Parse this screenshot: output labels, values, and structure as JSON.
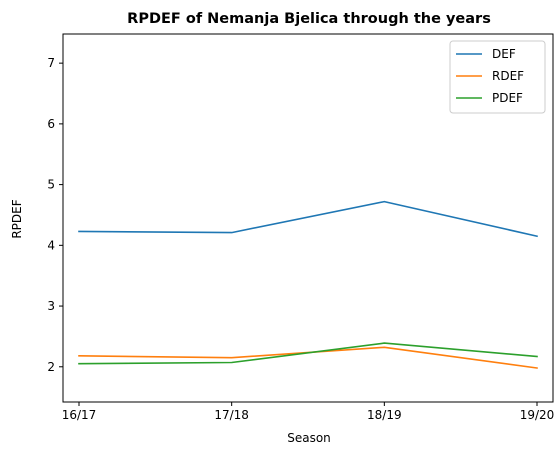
{
  "chart_data": {
    "type": "line",
    "title": "RPDEF of Nemanja Bjelica through the years",
    "xlabel": "Season",
    "ylabel": "RPDEF",
    "categories": [
      "16/17",
      "17/18",
      "18/19",
      "19/20"
    ],
    "ylim": [
      1.42,
      7.48
    ],
    "yticks": [
      2,
      3,
      4,
      5,
      6,
      7
    ],
    "grid": false,
    "legend_position": "top-right",
    "series": [
      {
        "name": "DEF",
        "color": "#1f77b4",
        "values": [
          4.23,
          4.21,
          4.72,
          4.15
        ]
      },
      {
        "name": "RDEF",
        "color": "#ff7f0e",
        "values": [
          2.18,
          2.15,
          2.32,
          1.98
        ]
      },
      {
        "name": "PDEF",
        "color": "#2ca02c",
        "values": [
          2.05,
          2.07,
          2.39,
          2.17
        ]
      }
    ]
  }
}
